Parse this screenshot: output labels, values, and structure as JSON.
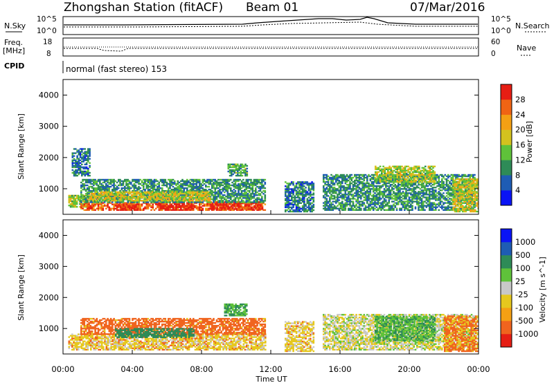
{
  "header": {
    "title": "Zhongshan Station (fitACF)",
    "beam": "Beam 01",
    "date": "07/Mar/2016"
  },
  "noise_panel": {
    "left_label": "N.Sky",
    "right_label": "N.Search",
    "left_ticks": [
      "10^5",
      "10^0"
    ],
    "right_ticks": [
      "10^5",
      "10^0"
    ]
  },
  "freq_panel": {
    "left_label_1": "Freq.",
    "left_label_2": "[MHz]",
    "left_ticks": [
      "18",
      "8"
    ],
    "right_label": "Nave",
    "right_ticks": [
      "60",
      "0"
    ]
  },
  "cpid": {
    "label": "CPID",
    "text": "normal (fast stereo) 153"
  },
  "colors": {
    "power_scale": [
      "#0a14f5",
      "#1e5cb4",
      "#2e8b57",
      "#5fc23a",
      "#d4c21e",
      "#f4a014",
      "#f06414",
      "#e61e14"
    ],
    "velocity_scale": [
      "#e61e14",
      "#f0641e",
      "#f5a014",
      "#e6c81e",
      "#c8c8c8",
      "#5fc23a",
      "#2e8b57",
      "#1e5cb4",
      "#0a14f5"
    ]
  },
  "chart_data": [
    {
      "type": "heatmap",
      "panel": "power",
      "ylabel": "Slant Range [km]",
      "yticks": [
        "4000",
        "3000",
        "2000",
        "1000"
      ],
      "ylim": [
        180,
        4500
      ],
      "xlim": [
        0,
        24
      ],
      "colorbar_label": "Power [dB]",
      "colorbar_ticks": [
        "28",
        "24",
        "20",
        "16",
        "12",
        "8",
        "4"
      ],
      "bins": [
        {
          "t0": 0.3,
          "t1": 1.5,
          "r0": 400,
          "r1": 800,
          "v": 16
        },
        {
          "t0": 1.0,
          "t1": 11.7,
          "r0": 300,
          "r1": 550,
          "v": 26
        },
        {
          "t0": 3.0,
          "t1": 4.3,
          "r0": 300,
          "r1": 500,
          "v": 30
        },
        {
          "t0": 5.5,
          "t1": 7.5,
          "r0": 300,
          "r1": 500,
          "v": 30
        },
        {
          "t0": 8.5,
          "t1": 11.5,
          "r0": 330,
          "r1": 560,
          "v": 30
        },
        {
          "t0": 1.0,
          "t1": 11.7,
          "r0": 550,
          "r1": 1300,
          "v": 10
        },
        {
          "t0": 1.5,
          "t1": 8.5,
          "r0": 600,
          "r1": 900,
          "v": 18
        },
        {
          "t0": 0.5,
          "t1": 1.5,
          "r0": 1400,
          "r1": 2300,
          "v": 8
        },
        {
          "t0": 9.5,
          "t1": 10.6,
          "r0": 1400,
          "r1": 1800,
          "v": 12
        },
        {
          "t0": 12.8,
          "t1": 14.5,
          "r0": 250,
          "r1": 1200,
          "v": 8
        },
        {
          "t0": 15.0,
          "t1": 23.8,
          "r0": 300,
          "r1": 1450,
          "v": 10
        },
        {
          "t0": 18.0,
          "t1": 21.5,
          "r0": 1200,
          "r1": 1700,
          "v": 16
        },
        {
          "t0": 22.5,
          "t1": 24.0,
          "r0": 250,
          "r1": 1300,
          "v": 18
        }
      ]
    },
    {
      "type": "heatmap",
      "panel": "velocity",
      "ylabel": "Slant Range [km]",
      "yticks": [
        "4000",
        "3000",
        "2000",
        "1000"
      ],
      "ylim": [
        180,
        4500
      ],
      "xlim": [
        0,
        24
      ],
      "xlabel": "Time UT",
      "xticks": [
        "00:00",
        "04:00",
        "08:00",
        "12:00",
        "16:00",
        "20:00",
        "00:00"
      ],
      "colorbar_label": "Velocity [m s^-1]",
      "colorbar_ticks": [
        "1000",
        "500",
        "100",
        "25",
        "-25",
        "-100",
        "-500",
        "-1000"
      ],
      "bins": [
        {
          "t0": 0.3,
          "t1": 11.7,
          "r0": 300,
          "r1": 800,
          "v": -60
        },
        {
          "t0": 1.0,
          "t1": 11.7,
          "r0": 800,
          "r1": 1300,
          "v": -150
        },
        {
          "t0": 3.0,
          "t1": 7.5,
          "r0": 700,
          "r1": 1000,
          "v": 400
        },
        {
          "t0": 9.3,
          "t1": 10.6,
          "r0": 1400,
          "r1": 1800,
          "v": 100
        },
        {
          "t0": 12.8,
          "t1": 14.5,
          "r0": 250,
          "r1": 1200,
          "v": -50
        },
        {
          "t0": 15.0,
          "t1": 23.8,
          "r0": 300,
          "r1": 1450,
          "v": -10
        },
        {
          "t0": 18.0,
          "t1": 21.5,
          "r0": 600,
          "r1": 1400,
          "v": 90
        },
        {
          "t0": 22.0,
          "t1": 24.0,
          "r0": 250,
          "r1": 1400,
          "v": -120
        }
      ]
    }
  ]
}
